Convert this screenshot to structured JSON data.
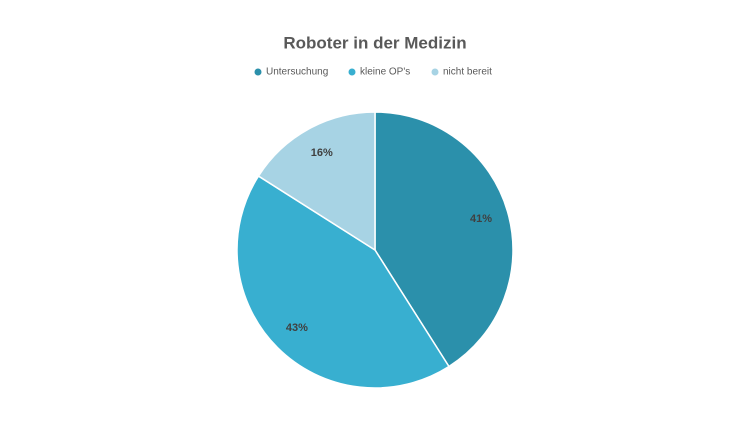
{
  "chart_data": {
    "type": "pie",
    "title": "Roboter in der Medizin",
    "categories": [
      "Untersuchung",
      "kleine OP's",
      "nicht bereit"
    ],
    "values": [
      41,
      43,
      16
    ],
    "value_labels": [
      "41%",
      "43%",
      "16%"
    ],
    "colors": [
      "#2b90ab",
      "#38afd0",
      "#a7d3e4"
    ]
  }
}
